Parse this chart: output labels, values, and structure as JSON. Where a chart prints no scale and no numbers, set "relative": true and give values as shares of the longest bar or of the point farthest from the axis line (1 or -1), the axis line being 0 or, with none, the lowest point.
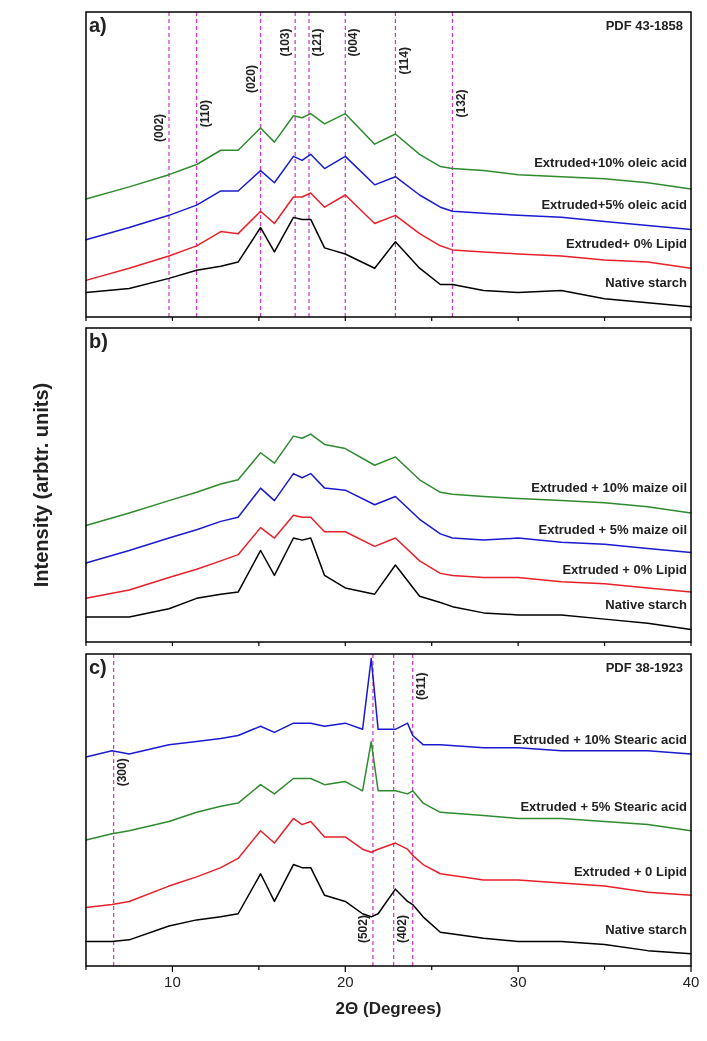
{
  "chart_data": [
    {
      "type": "line",
      "relative": true,
      "tick_labels": false,
      "annotations": [
        "a)",
        "PDF 43-1858",
        {
          "text": "(002)",
          "x": 9.8,
          "y": 0.93
        },
        {
          "text": "(110)",
          "x": 11.4,
          "y": 1.0
        },
        {
          "text": "(020)",
          "x": 15.1,
          "y": 1.17
        },
        {
          "text": "(103)",
          "x": 17.1,
          "y": 1.35
        },
        {
          "text": "(121)",
          "x": 17.9,
          "y": 1.35
        },
        {
          "text": "(004)",
          "x": 20,
          "y": 1.35
        },
        {
          "text": "(114)",
          "x": 22.9,
          "y": 1.26
        },
        {
          "text": "(132)",
          "x": 26.2,
          "y": 1.05
        }
      ],
      "x": [
        5,
        7.5,
        9.8,
        11.4,
        12.8,
        13.8,
        15.1,
        15.9,
        17,
        17.5,
        18,
        18.8,
        20,
        21.7,
        22.9,
        24.3,
        25.5,
        26.2,
        28,
        30,
        32.5,
        35,
        37.5,
        40
      ],
      "xlim": [
        5,
        40
      ],
      "xticks": [
        {
          "value": 5,
          "label": null
        },
        {
          "value": 10,
          "label": null
        },
        {
          "value": 15,
          "label": null
        },
        {
          "value": 20,
          "label": null
        },
        {
          "value": 25,
          "label": null
        },
        {
          "value": 30,
          "label": null
        },
        {
          "value": 35,
          "label": null
        },
        {
          "value": 40,
          "label": null
        }
      ],
      "series": [
        {
          "name": "Native starch",
          "color": "#000000",
          "values": [
            0.12,
            0.14,
            0.19,
            0.23,
            0.25,
            0.27,
            0.44,
            0.32,
            0.49,
            0.48,
            0.48,
            0.34,
            0.31,
            0.24,
            0.37,
            0.24,
            0.16,
            0.16,
            0.13,
            0.12,
            0.13,
            0.09,
            0.07,
            0.05
          ]
        },
        {
          "name": "Extruded+ 0% Lipid",
          "color": "#e8202a",
          "values": [
            0.18,
            0.24,
            0.3,
            0.35,
            0.42,
            0.41,
            0.52,
            0.46,
            0.59,
            0.59,
            0.61,
            0.54,
            0.6,
            0.46,
            0.5,
            0.41,
            0.35,
            0.33,
            0.32,
            0.31,
            0.3,
            0.28,
            0.27,
            0.24
          ]
        },
        {
          "name": "Extruded+5% oleic acid",
          "color": "#1a1ad0",
          "values": [
            0.38,
            0.44,
            0.5,
            0.55,
            0.62,
            0.62,
            0.72,
            0.66,
            0.79,
            0.77,
            0.8,
            0.73,
            0.79,
            0.65,
            0.69,
            0.6,
            0.54,
            0.52,
            0.51,
            0.5,
            0.49,
            0.47,
            0.45,
            0.43
          ]
        },
        {
          "name": "Extruded+10% oleic acid",
          "color": "#2e8b2e",
          "values": [
            0.58,
            0.64,
            0.7,
            0.75,
            0.82,
            0.82,
            0.93,
            0.86,
            0.99,
            0.98,
            1,
            0.95,
            1,
            0.85,
            0.9,
            0.8,
            0.74,
            0.73,
            0.72,
            0.7,
            0.69,
            0.68,
            0.66,
            0.63
          ]
        }
      ],
      "ref_lines": [
        {
          "axis": "x",
          "value": 9.8,
          "color": "#cc33cc",
          "line_style": "dashed"
        },
        {
          "axis": "x",
          "value": 11.4,
          "color": "#cc33cc",
          "line_style": "dashed"
        },
        {
          "axis": "x",
          "value": 15.1,
          "color": "#cc33cc",
          "line_style": "dashed"
        },
        {
          "axis": "x",
          "value": 17.1,
          "color": "#cc33cc",
          "line_style": "dashed"
        },
        {
          "axis": "x",
          "value": 17.9,
          "color": "#cc33cc",
          "line_style": "dashed"
        },
        {
          "axis": "x",
          "value": 20,
          "color": "#cc33cc",
          "line_style": "dashed"
        },
        {
          "axis": "x",
          "value": 22.9,
          "color": "#cc33cc",
          "line_style": "dashed"
        },
        {
          "axis": "x",
          "value": 26.2,
          "color": "#cc33cc",
          "line_style": "dashed"
        }
      ]
    },
    {
      "type": "line",
      "relative": true,
      "tick_labels": false,
      "annotations": [
        "b)"
      ],
      "ylabel": "Intensity (arbtr. units)",
      "x": [
        5,
        7.5,
        9.8,
        11.4,
        12.8,
        13.8,
        15.1,
        15.9,
        17,
        17.5,
        18,
        18.8,
        20,
        21.7,
        22.9,
        24.3,
        25.5,
        26.2,
        28,
        30,
        32.5,
        35,
        37.5,
        40
      ],
      "xlim": [
        5,
        40
      ],
      "xticks": [
        {
          "value": 5,
          "label": null
        },
        {
          "value": 10,
          "label": null
        },
        {
          "value": 15,
          "label": null
        },
        {
          "value": 20,
          "label": null
        },
        {
          "value": 25,
          "label": null
        },
        {
          "value": 30,
          "label": null
        },
        {
          "value": 35,
          "label": null
        },
        {
          "value": 40,
          "label": null
        }
      ],
      "series": [
        {
          "name": "Native starch",
          "color": "#000000",
          "values": [
            0.12,
            0.12,
            0.16,
            0.21,
            0.23,
            0.24,
            0.44,
            0.32,
            0.5,
            0.49,
            0.5,
            0.32,
            0.26,
            0.23,
            0.37,
            0.22,
            0.19,
            0.17,
            0.14,
            0.13,
            0.13,
            0.11,
            0.09,
            0.06
          ]
        },
        {
          "name": "Extruded + 0% Lipid",
          "color": "#e8202a",
          "values": [
            0.21,
            0.25,
            0.31,
            0.35,
            0.39,
            0.42,
            0.55,
            0.5,
            0.61,
            0.6,
            0.6,
            0.53,
            0.53,
            0.46,
            0.5,
            0.39,
            0.33,
            0.32,
            0.31,
            0.31,
            0.29,
            0.28,
            0.26,
            0.24
          ]
        },
        {
          "name": "Extruded + 5% maize oil",
          "color": "#1a1ad0",
          "values": [
            0.38,
            0.44,
            0.5,
            0.54,
            0.58,
            0.6,
            0.74,
            0.68,
            0.81,
            0.79,
            0.81,
            0.74,
            0.73,
            0.66,
            0.7,
            0.59,
            0.52,
            0.5,
            0.49,
            0.5,
            0.48,
            0.47,
            0.45,
            0.43
          ]
        },
        {
          "name": "Extruded + 10% maize oil",
          "color": "#2e8b2e",
          "values": [
            0.56,
            0.62,
            0.68,
            0.72,
            0.76,
            0.78,
            0.91,
            0.86,
            0.99,
            0.98,
            1,
            0.95,
            0.93,
            0.85,
            0.89,
            0.78,
            0.72,
            0.71,
            0.7,
            0.69,
            0.68,
            0.67,
            0.65,
            0.62
          ]
        }
      ]
    },
    {
      "type": "line",
      "relative": true,
      "tick_labels": "x",
      "annotations": [
        "c)",
        "PDF 38-1923",
        {
          "text": "(300)",
          "x": 6.6,
          "y": 0.63
        },
        {
          "text": "(502)",
          "x": 21.6,
          "y": 0.12
        },
        {
          "text": "(402)",
          "x": 22.8,
          "y": 0.12
        },
        {
          "text": "(611)",
          "x": 23.9,
          "y": 0.91
        }
      ],
      "xlabel": "2Θ (Degrees)",
      "x": [
        5,
        6.5,
        7.5,
        9.8,
        11.4,
        12.8,
        13.8,
        15.1,
        15.9,
        17,
        17.5,
        18,
        18.8,
        20,
        21,
        21.5,
        21.9,
        22.9,
        23.6,
        23.9,
        24.5,
        25.5,
        28,
        30,
        32.5,
        35,
        37.5,
        40
      ],
      "xlim": [
        5,
        40
      ],
      "xticks": [
        {
          "value": 5,
          "label": null
        },
        {
          "value": 10,
          "label": "10"
        },
        {
          "value": 15,
          "label": null
        },
        {
          "value": 20,
          "label": "20"
        },
        {
          "value": 25,
          "label": null
        },
        {
          "value": 30,
          "label": "30"
        },
        {
          "value": 35,
          "label": null
        },
        {
          "value": 40,
          "label": "40"
        }
      ],
      "series": [
        {
          "name": "Native starch",
          "color": "#000000",
          "values": [
            0.08,
            0.08,
            0.085,
            0.13,
            0.15,
            0.16,
            0.17,
            0.3,
            0.21,
            0.33,
            0.32,
            0.32,
            0.23,
            0.21,
            0.17,
            0.16,
            0.17,
            0.25,
            0.21,
            0.2,
            0.16,
            0.11,
            0.09,
            0.08,
            0.08,
            0.07,
            0.05,
            0.04
          ]
        },
        {
          "name": "Extruded + 0 Lipid",
          "color": "#e8202a",
          "values": [
            0.19,
            0.2,
            0.21,
            0.26,
            0.29,
            0.32,
            0.35,
            0.44,
            0.4,
            0.48,
            0.46,
            0.47,
            0.42,
            0.42,
            0.38,
            0.37,
            0.38,
            0.4,
            0.38,
            0.36,
            0.33,
            0.3,
            0.28,
            0.28,
            0.27,
            0.26,
            0.24,
            0.23
          ]
        },
        {
          "name": "Extruded + 5% Stearic acid",
          "color": "#2e8b2e",
          "values": [
            0.41,
            0.43,
            0.44,
            0.47,
            0.5,
            0.52,
            0.53,
            0.59,
            0.56,
            0.61,
            0.61,
            0.61,
            0.59,
            0.6,
            0.57,
            0.73,
            0.57,
            0.57,
            0.56,
            0.57,
            0.53,
            0.5,
            0.49,
            0.48,
            0.48,
            0.47,
            0.46,
            0.44
          ]
        },
        {
          "name": "Extruded + 10% Stearic acid",
          "color": "#1a1ad0",
          "values": [
            0.68,
            0.7,
            0.69,
            0.72,
            0.73,
            0.74,
            0.75,
            0.78,
            0.76,
            0.79,
            0.79,
            0.79,
            0.78,
            0.79,
            0.77,
            1,
            0.77,
            0.77,
            0.79,
            0.75,
            0.72,
            0.72,
            0.71,
            0.71,
            0.7,
            0.7,
            0.7,
            0.69
          ]
        }
      ],
      "ref_lines": [
        {
          "axis": "x",
          "value": 6.6,
          "color": "#cc33cc",
          "line_style": "dashed"
        },
        {
          "axis": "x",
          "value": 21.6,
          "color": "#cc33cc",
          "line_style": "dashed"
        },
        {
          "axis": "x",
          "value": 22.8,
          "color": "#cc33cc",
          "line_style": "dashed"
        },
        {
          "axis": "x",
          "value": 23.9,
          "color": "#cc33cc",
          "line_style": "dashed"
        }
      ]
    }
  ]
}
